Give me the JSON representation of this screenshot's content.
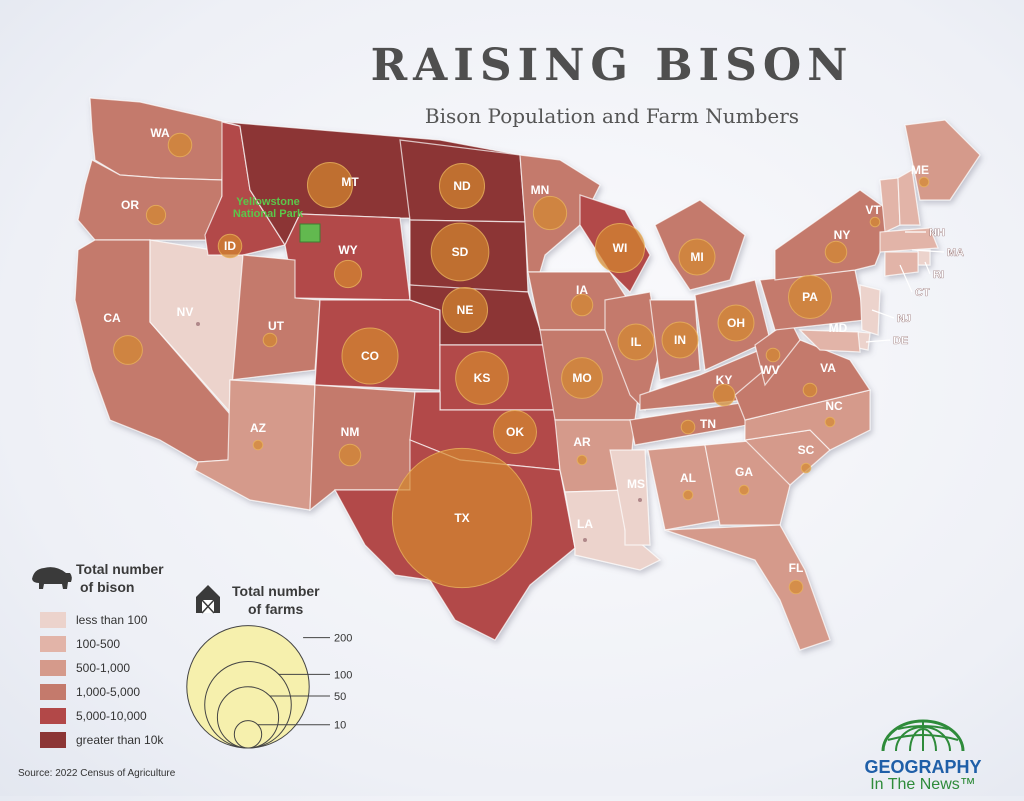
{
  "title": "RAISING BISON",
  "subtitle": "Bison Population and Farm Numbers",
  "source": "Source: 2022 Census of Agriculture",
  "brand": {
    "line1": "GEOGRAPHY",
    "line2": "In The News™"
  },
  "yellowstone_label": "Yellowstone National Park",
  "colors": {
    "lt100": "#ecd3cc",
    "c100_500": "#e2b4a8",
    "c500_1000": "#d59a8b",
    "c1000_5000": "#c47a6c",
    "c5000_10000": "#b24848",
    "gt10k": "#8c3535",
    "farm_circle": "#d4892f",
    "yellowstone": "#62b94f",
    "legend_circle": "#f6f0ad"
  },
  "legend_bison": {
    "title_line1": "Total number",
    "title_line2": "of bison",
    "items": [
      {
        "label": "less than 100",
        "color_key": "lt100"
      },
      {
        "label": "100-500",
        "color_key": "c100_500"
      },
      {
        "label": "500-1,000",
        "color_key": "c500_1000"
      },
      {
        "label": "1,000-5,000",
        "color_key": "c1000_5000"
      },
      {
        "label": "5,000-10,000",
        "color_key": "c5000_10000"
      },
      {
        "label": "greater than 10k",
        "color_key": "gt10k"
      }
    ]
  },
  "legend_farms": {
    "title_line1": "Total number",
    "title_line2": "of farms",
    "values": [
      200,
      100,
      50,
      10
    ]
  },
  "states": [
    {
      "abbr": "WA",
      "bison_class": "c1000_5000",
      "farms": 6
    },
    {
      "abbr": "OR",
      "bison_class": "c1000_5000",
      "farms": 4
    },
    {
      "abbr": "CA",
      "bison_class": "c1000_5000",
      "farms": 9
    },
    {
      "abbr": "NV",
      "bison_class": "lt100",
      "farms": 0
    },
    {
      "abbr": "ID",
      "bison_class": "c5000_10000",
      "farms": 6
    },
    {
      "abbr": "MT",
      "bison_class": "gt10k",
      "farms": 22
    },
    {
      "abbr": "WY",
      "bison_class": "c5000_10000",
      "farms": 8
    },
    {
      "abbr": "UT",
      "bison_class": "c1000_5000",
      "farms": 2
    },
    {
      "abbr": "AZ",
      "bison_class": "c500_1000",
      "farms": 1
    },
    {
      "abbr": "CO",
      "bison_class": "c5000_10000",
      "farms": 34
    },
    {
      "abbr": "NM",
      "bison_class": "c1000_5000",
      "farms": 5
    },
    {
      "abbr": "ND",
      "bison_class": "gt10k",
      "farms": 22
    },
    {
      "abbr": "SD",
      "bison_class": "gt10k",
      "farms": 36
    },
    {
      "abbr": "NE",
      "bison_class": "gt10k",
      "farms": 22
    },
    {
      "abbr": "KS",
      "bison_class": "c5000_10000",
      "farms": 30
    },
    {
      "abbr": "OK",
      "bison_class": "c5000_10000",
      "farms": 20
    },
    {
      "abbr": "TX",
      "bison_class": "c5000_10000",
      "farms": 210
    },
    {
      "abbr": "MN",
      "bison_class": "c1000_5000",
      "farms": 12
    },
    {
      "abbr": "IA",
      "bison_class": "c1000_5000",
      "farms": 5
    },
    {
      "abbr": "MO",
      "bison_class": "c1000_5000",
      "farms": 18
    },
    {
      "abbr": "AR",
      "bison_class": "c500_1000",
      "farms": 1
    },
    {
      "abbr": "LA",
      "bison_class": "lt100",
      "farms": 0
    },
    {
      "abbr": "WI",
      "bison_class": "c5000_10000",
      "farms": 26
    },
    {
      "abbr": "IL",
      "bison_class": "c1000_5000",
      "farms": 14
    },
    {
      "abbr": "MI",
      "bison_class": "c1000_5000",
      "farms": 14
    },
    {
      "abbr": "IN",
      "bison_class": "c1000_5000",
      "farms": 14
    },
    {
      "abbr": "OH",
      "bison_class": "c1000_5000",
      "farms": 14
    },
    {
      "abbr": "KY",
      "bison_class": "c1000_5000",
      "farms": 5
    },
    {
      "abbr": "TN",
      "bison_class": "c1000_5000",
      "farms": 2
    },
    {
      "abbr": "MS",
      "bison_class": "lt100",
      "farms": 0
    },
    {
      "abbr": "AL",
      "bison_class": "c500_1000",
      "farms": 1
    },
    {
      "abbr": "GA",
      "bison_class": "c500_1000",
      "farms": 1
    },
    {
      "abbr": "FL",
      "bison_class": "c500_1000",
      "farms": 2
    },
    {
      "abbr": "SC",
      "bison_class": "c500_1000",
      "farms": 1
    },
    {
      "abbr": "NC",
      "bison_class": "c500_1000",
      "farms": 1
    },
    {
      "abbr": "VA",
      "bison_class": "c1000_5000",
      "farms": 2
    },
    {
      "abbr": "WV",
      "bison_class": "c1000_5000",
      "farms": 2
    },
    {
      "abbr": "PA",
      "bison_class": "c1000_5000",
      "farms": 20
    },
    {
      "abbr": "NY",
      "bison_class": "c1000_5000",
      "farms": 5
    },
    {
      "abbr": "ME",
      "bison_class": "c500_1000",
      "farms": 1
    },
    {
      "abbr": "VT",
      "bison_class": "c100_500",
      "farms": 1
    },
    {
      "abbr": "NH",
      "bison_class": "c100_500",
      "farms": 1
    },
    {
      "abbr": "MA",
      "bison_class": "c100_500",
      "farms": 1
    },
    {
      "abbr": "RI",
      "bison_class": "lt100",
      "farms": 0
    },
    {
      "abbr": "CT",
      "bison_class": "c100_500",
      "farms": 0
    },
    {
      "abbr": "NJ",
      "bison_class": "lt100",
      "farms": 0
    },
    {
      "abbr": "DE",
      "bison_class": "lt100",
      "farms": 0
    },
    {
      "abbr": "MD",
      "bison_class": "c100_500",
      "farms": 1
    }
  ]
}
